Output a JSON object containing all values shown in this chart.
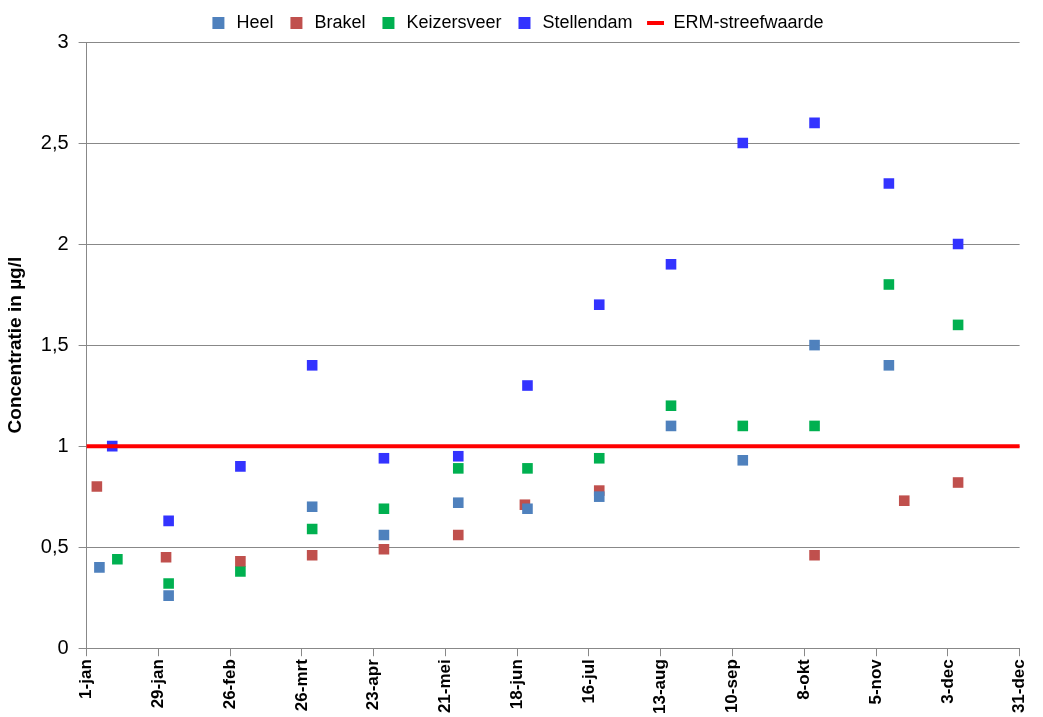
{
  "chart_data": {
    "type": "scatter",
    "ylabel": "Concentratie in µg/l",
    "marker": "square",
    "grid": "y",
    "legend": "top",
    "xlim": [
      "--01-01",
      "--12-31"
    ],
    "xticks": [
      {
        "value": "--01-01",
        "label": "1-jan"
      },
      {
        "value": "--01-29",
        "label": "29-jan"
      },
      {
        "value": "--02-26",
        "label": "26-feb"
      },
      {
        "value": "--03-26",
        "label": "26-mrt"
      },
      {
        "value": "--04-23",
        "label": "23-apr"
      },
      {
        "value": "--05-21",
        "label": "21-mei"
      },
      {
        "value": "--06-18",
        "label": "18-jun"
      },
      {
        "value": "--07-16",
        "label": "16-jul"
      },
      {
        "value": "--08-13",
        "label": "13-aug"
      },
      {
        "value": "--09-10",
        "label": "10-sep"
      },
      {
        "value": "--10-08",
        "label": "8-okt"
      },
      {
        "value": "--11-05",
        "label": "5-nov"
      },
      {
        "value": "--12-03",
        "label": "3-dec"
      },
      {
        "value": "--12-31",
        "label": "31-dec"
      }
    ],
    "ylim": [
      0,
      3
    ],
    "yticks": [
      0,
      {
        "value": 0.5,
        "label": "0,5"
      },
      1,
      {
        "value": 1.5,
        "label": "1,5"
      },
      2,
      {
        "value": 2.5,
        "label": "2,5"
      },
      3
    ],
    "series": [
      {
        "name": "Heel",
        "color": "#4f81bd",
        "x": [
          "--01-06",
          "--02-02",
          "--03-30",
          "--04-27",
          "--05-26",
          "--06-22",
          "--07-20",
          "--08-17",
          "--09-14",
          "--10-12",
          "--11-10"
        ],
        "values": [
          0.4,
          0.26,
          0.7,
          0.56,
          0.72,
          0.69,
          0.75,
          1.1,
          0.93,
          1.5,
          1.4
        ]
      },
      {
        "name": "Brakel",
        "color": "#c0504d",
        "x": [
          "--01-05",
          "--02-01",
          "--03-02",
          "--03-30",
          "--04-27",
          "--05-26",
          "--06-21",
          "--07-20",
          "--10-12",
          "--11-16",
          "--12-07"
        ],
        "values": [
          0.8,
          0.45,
          0.43,
          0.46,
          0.49,
          0.56,
          0.71,
          0.78,
          0.46,
          0.73,
          0.82
        ]
      },
      {
        "name": "Keizersveer",
        "color": "#00b050",
        "x": [
          "--01-13",
          "--02-02",
          "--03-02",
          "--03-30",
          "--04-27",
          "--05-26",
          "--06-22",
          "--07-20",
          "--08-17",
          "--09-14",
          "--10-12",
          "--11-10",
          "--12-07"
        ],
        "values": [
          0.44,
          0.32,
          0.38,
          0.59,
          0.69,
          0.89,
          0.89,
          0.94,
          1.2,
          1.1,
          1.1,
          1.8,
          1.6
        ]
      },
      {
        "name": "Stellendam",
        "color": "#3333ff",
        "x": [
          "--01-11",
          "--02-02",
          "--03-02",
          "--03-30",
          "--04-27",
          "--05-26",
          "--06-22",
          "--07-20",
          "--08-17",
          "--09-14",
          "--10-12",
          "--11-10",
          "--12-07"
        ],
        "values": [
          1.0,
          0.63,
          0.9,
          1.4,
          0.94,
          0.95,
          1.3,
          1.7,
          1.9,
          2.5,
          2.6,
          2.3,
          2.0
        ]
      }
    ],
    "ref_lines": [
      {
        "axis": "y",
        "value": 1,
        "label": "ERM-streefwaarde",
        "color": "#ff0000",
        "line_style": "solid"
      }
    ]
  }
}
